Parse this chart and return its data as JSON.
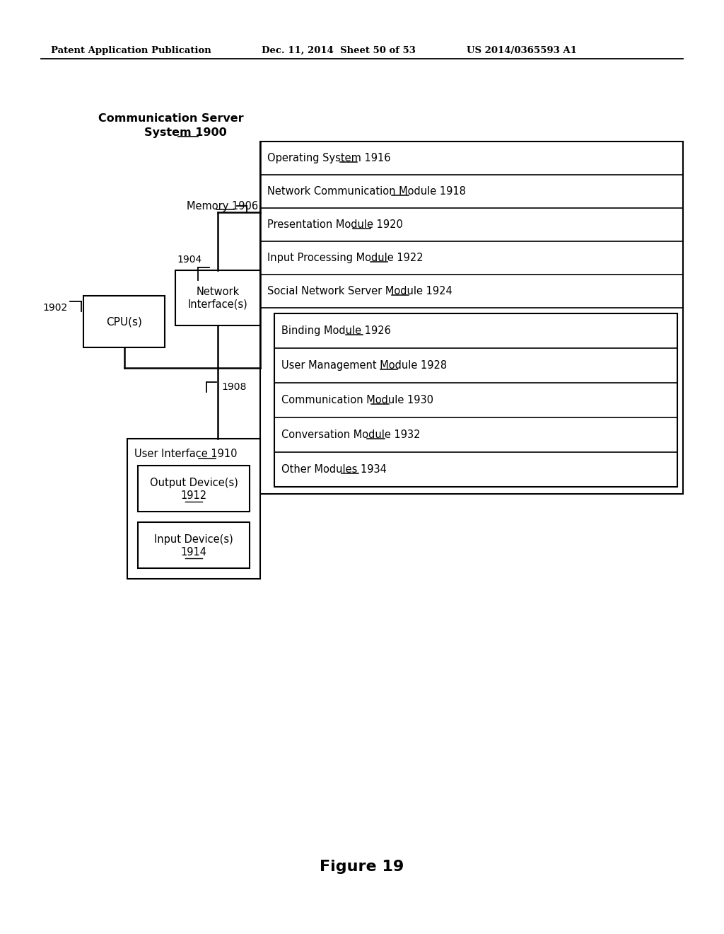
{
  "bg": "#ffffff",
  "header_left": "Patent Application Publication",
  "header_mid": "Dec. 11, 2014  Sheet 50 of 53",
  "header_right": "US 2014/0365593 A1",
  "fig_label": "Figure 19",
  "comm_server_title1": "Communication Server",
  "comm_server_title2": "System ",
  "comm_server_num": "1900",
  "memory_text": "Memory ",
  "memory_num": "1906",
  "cpu_text": "CPU(s)",
  "cpu_num": "1902",
  "net_text": "Network\nInterface(s)",
  "net_num": "1904",
  "bus_num": "1908",
  "ui_text": "User Interface ",
  "ui_num": "1910",
  "out_text": "Output Device(s)",
  "out_num": "1912",
  "in_text": "Input Device(s)",
  "in_num": "1914",
  "modules": [
    {
      "text": "Operating System ",
      "num": "1916"
    },
    {
      "text": "Network Communication Module ",
      "num": "1918"
    },
    {
      "text": "Presentation Module ",
      "num": "1920"
    },
    {
      "text": "Input Processing Module ",
      "num": "1922"
    },
    {
      "text": "Social Network Server Module ",
      "num": "1924"
    },
    {
      "text": "Binding Module ",
      "num": "1926"
    },
    {
      "text": "User Management Module ",
      "num": "1928"
    },
    {
      "text": "Communication Module ",
      "num": "1930"
    },
    {
      "text": "Conversation Module ",
      "num": "1932"
    },
    {
      "text": "Other Modules ",
      "num": "1934"
    }
  ]
}
